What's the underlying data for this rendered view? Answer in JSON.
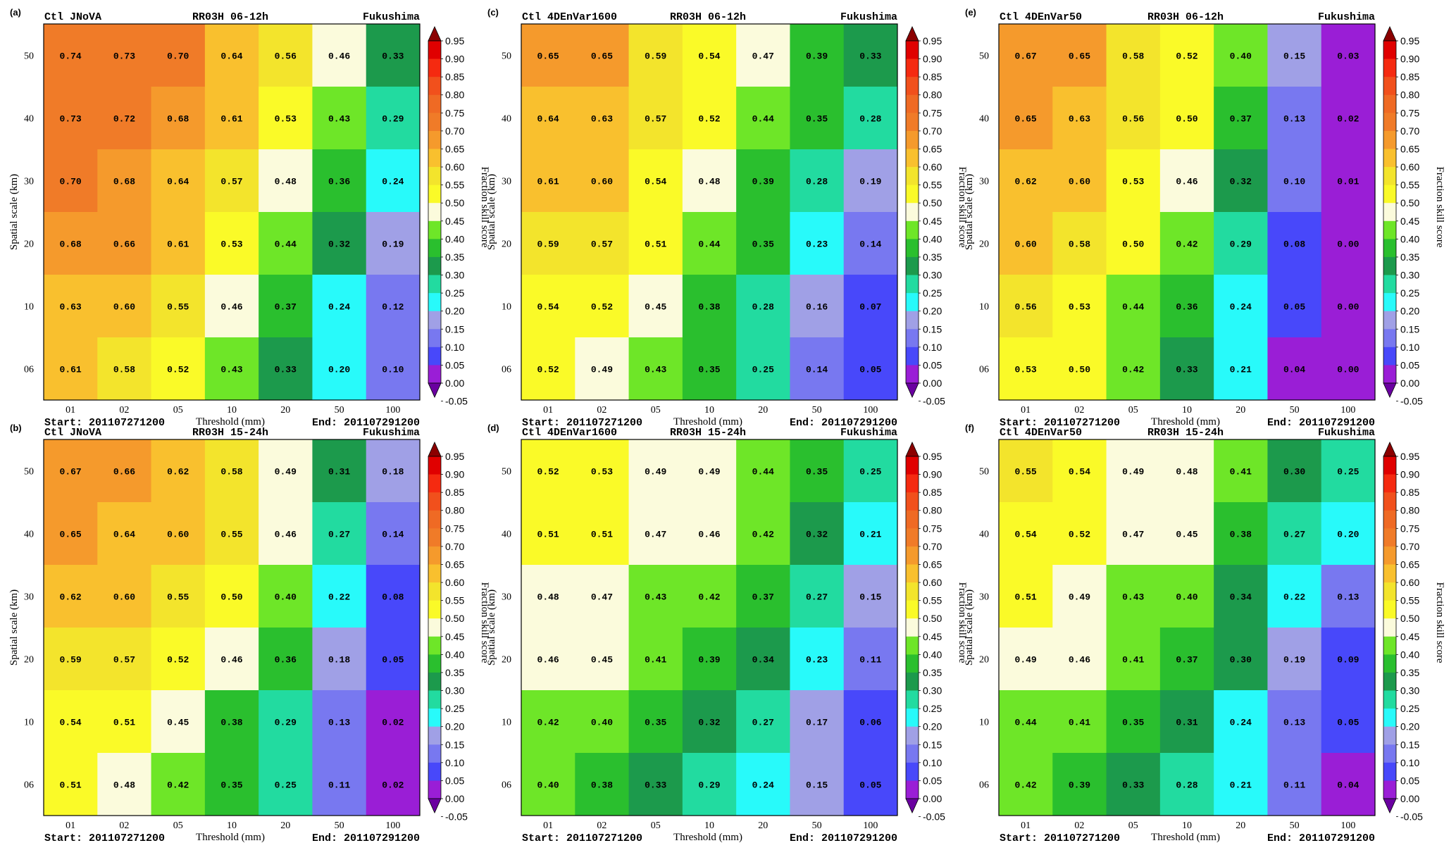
{
  "figure": {
    "colorbar": {
      "label": "Fraction skill score",
      "ticks": [
        "0.95",
        "0.90",
        "0.85",
        "0.80",
        "0.75",
        "0.70",
        "0.65",
        "0.60",
        "0.55",
        "0.50",
        "0.45",
        "0.40",
        "0.35",
        "0.30",
        "0.25",
        "0.20",
        "0.15",
        "0.10",
        "0.05",
        "0.00",
        "-0.05"
      ],
      "colors": [
        "#8b0000",
        "#e00000",
        "#f52a10",
        "#f1501c",
        "#ef6a24",
        "#f07b28",
        "#f59a2c",
        "#f9c02e",
        "#f3e42c",
        "#fafa28",
        "#fbfbdc",
        "#6ee628",
        "#2abf2e",
        "#1c9a4c",
        "#22dba0",
        "#28fafa",
        "#a0a0e6",
        "#7878f0",
        "#4848fa",
        "#9a1ed6",
        "#6a00a0"
      ]
    },
    "axes": {
      "xlabel": "Threshold (mm)",
      "ylabel": "Spatial scale (km)",
      "x_ticks": [
        "01",
        "02",
        "05",
        "10",
        "20",
        "50",
        "100"
      ],
      "y_ticks": [
        "50",
        "40",
        "30",
        "20",
        "10",
        "06"
      ]
    }
  },
  "chart_data": [
    {
      "type": "heatmap",
      "panel": "(a)",
      "title_left": "Ctl JNoVA",
      "title_mid": "RR03H  06-12h",
      "title_right": "Fukushima",
      "start": "Start: 201107271200",
      "end": "End: 201107291200",
      "show_colorbar_label": true,
      "x": [
        "01",
        "02",
        "05",
        "10",
        "20",
        "50",
        "100"
      ],
      "y": [
        "50",
        "40",
        "30",
        "20",
        "10",
        "06"
      ],
      "values": [
        [
          0.74,
          0.73,
          0.7,
          0.64,
          0.56,
          0.46,
          0.33
        ],
        [
          0.73,
          0.72,
          0.68,
          0.61,
          0.53,
          0.43,
          0.29
        ],
        [
          0.7,
          0.68,
          0.64,
          0.57,
          0.48,
          0.36,
          0.24
        ],
        [
          0.68,
          0.66,
          0.61,
          0.53,
          0.44,
          0.32,
          0.19
        ],
        [
          0.63,
          0.6,
          0.55,
          0.46,
          0.37,
          0.24,
          0.12
        ],
        [
          0.61,
          0.58,
          0.52,
          0.43,
          0.33,
          0.2,
          0.1
        ]
      ]
    },
    {
      "type": "heatmap",
      "panel": "(c)",
      "title_left": "Ctl 4DEnVar1600",
      "title_mid": "RR03H  06-12h",
      "title_right": "Fukushima",
      "start": "Start: 201107271200",
      "end": "End: 201107291200",
      "show_colorbar_label": true,
      "x": [
        "01",
        "02",
        "05",
        "10",
        "20",
        "50",
        "100"
      ],
      "y": [
        "50",
        "40",
        "30",
        "20",
        "10",
        "06"
      ],
      "values": [
        [
          0.65,
          0.65,
          0.59,
          0.54,
          0.47,
          0.39,
          0.33
        ],
        [
          0.64,
          0.63,
          0.57,
          0.52,
          0.44,
          0.35,
          0.28
        ],
        [
          0.61,
          0.6,
          0.54,
          0.48,
          0.39,
          0.28,
          0.19
        ],
        [
          0.59,
          0.57,
          0.51,
          0.44,
          0.35,
          0.23,
          0.14
        ],
        [
          0.54,
          0.52,
          0.45,
          0.38,
          0.28,
          0.16,
          0.07
        ],
        [
          0.52,
          0.49,
          0.43,
          0.35,
          0.25,
          0.14,
          0.05
        ]
      ]
    },
    {
      "type": "heatmap",
      "panel": "(e)",
      "title_left": "Ctl 4DEnVar50",
      "title_mid": "RR03H  06-12h",
      "title_right": "Fukushima",
      "start": "Start: 201107271200",
      "end": "End: 201107291200",
      "show_colorbar_label": true,
      "x": [
        "01",
        "02",
        "05",
        "10",
        "20",
        "50",
        "100"
      ],
      "y": [
        "50",
        "40",
        "30",
        "20",
        "10",
        "06"
      ],
      "values": [
        [
          0.67,
          0.65,
          0.58,
          0.52,
          0.4,
          0.15,
          0.03
        ],
        [
          0.65,
          0.63,
          0.56,
          0.5,
          0.37,
          0.13,
          0.02
        ],
        [
          0.62,
          0.6,
          0.53,
          0.46,
          0.32,
          0.1,
          0.01
        ],
        [
          0.6,
          0.58,
          0.5,
          0.42,
          0.29,
          0.08,
          0.0
        ],
        [
          0.56,
          0.53,
          0.44,
          0.36,
          0.24,
          0.05,
          0.0
        ],
        [
          0.53,
          0.5,
          0.42,
          0.33,
          0.21,
          0.04,
          0.0
        ]
      ]
    },
    {
      "type": "heatmap",
      "panel": "(b)",
      "title_left": "Ctl JNoVA",
      "title_mid": "RR03H  15-24h",
      "title_right": "Fukushima",
      "start": "Start: 201107271200",
      "end": "End: 201107291200",
      "show_colorbar_label": true,
      "x": [
        "01",
        "02",
        "05",
        "10",
        "20",
        "50",
        "100"
      ],
      "y": [
        "50",
        "40",
        "30",
        "20",
        "10",
        "06"
      ],
      "values": [
        [
          0.67,
          0.66,
          0.62,
          0.58,
          0.49,
          0.31,
          0.18
        ],
        [
          0.65,
          0.64,
          0.6,
          0.55,
          0.46,
          0.27,
          0.14
        ],
        [
          0.62,
          0.6,
          0.55,
          0.5,
          0.4,
          0.22,
          0.08
        ],
        [
          0.59,
          0.57,
          0.52,
          0.46,
          0.36,
          0.18,
          0.05
        ],
        [
          0.54,
          0.51,
          0.45,
          0.38,
          0.29,
          0.13,
          0.02
        ],
        [
          0.51,
          0.48,
          0.42,
          0.35,
          0.25,
          0.11,
          0.02
        ]
      ]
    },
    {
      "type": "heatmap",
      "panel": "(d)",
      "title_left": "Ctl 4DEnVar1600",
      "title_mid": "RR03H  15-24h",
      "title_right": "Fukushima",
      "start": "Start: 201107271200",
      "end": "End: 201107291200",
      "show_colorbar_label": true,
      "x": [
        "01",
        "02",
        "05",
        "10",
        "20",
        "50",
        "100"
      ],
      "y": [
        "50",
        "40",
        "30",
        "20",
        "10",
        "06"
      ],
      "values": [
        [
          0.52,
          0.53,
          0.49,
          0.49,
          0.44,
          0.35,
          0.25
        ],
        [
          0.51,
          0.51,
          0.47,
          0.46,
          0.42,
          0.32,
          0.21
        ],
        [
          0.48,
          0.47,
          0.43,
          0.42,
          0.37,
          0.27,
          0.15
        ],
        [
          0.46,
          0.45,
          0.41,
          0.39,
          0.34,
          0.23,
          0.11
        ],
        [
          0.42,
          0.4,
          0.35,
          0.32,
          0.27,
          0.17,
          0.06
        ],
        [
          0.4,
          0.38,
          0.33,
          0.29,
          0.24,
          0.15,
          0.05
        ]
      ]
    },
    {
      "type": "heatmap",
      "panel": "(f)",
      "title_left": "Ctl 4DEnVar50",
      "title_mid": "RR03H  15-24h",
      "title_right": "Fukushima",
      "start": "Start: 201107271200",
      "end": "End: 201107291200",
      "show_colorbar_label": true,
      "x": [
        "01",
        "02",
        "05",
        "10",
        "20",
        "50",
        "100"
      ],
      "y": [
        "50",
        "40",
        "30",
        "20",
        "10",
        "06"
      ],
      "values": [
        [
          0.55,
          0.54,
          0.49,
          0.48,
          0.41,
          0.3,
          0.25
        ],
        [
          0.54,
          0.52,
          0.47,
          0.45,
          0.38,
          0.27,
          0.2
        ],
        [
          0.51,
          0.49,
          0.43,
          0.4,
          0.34,
          0.22,
          0.13
        ],
        [
          0.49,
          0.46,
          0.41,
          0.37,
          0.3,
          0.19,
          0.09
        ],
        [
          0.44,
          0.41,
          0.35,
          0.31,
          0.24,
          0.13,
          0.05
        ],
        [
          0.42,
          0.39,
          0.33,
          0.28,
          0.21,
          0.11,
          0.04
        ]
      ]
    }
  ]
}
